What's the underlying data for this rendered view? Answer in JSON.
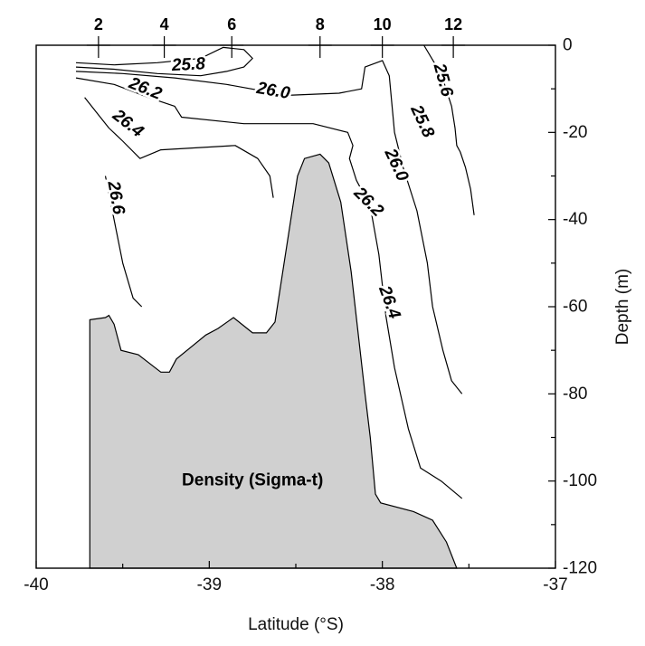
{
  "chart_data": {
    "type": "contour",
    "annotation": "Density (Sigma-t)",
    "xlabel": "Latitude (°S)",
    "ylabel": "Depth (m)",
    "xlim": [
      -40,
      -37
    ],
    "ylim": [
      0,
      120
    ],
    "x_ticks": [
      {
        "value": -40,
        "label": "-40"
      },
      {
        "value": -39,
        "label": "-39"
      },
      {
        "value": -38,
        "label": "-38"
      },
      {
        "value": -37,
        "label": "-37"
      }
    ],
    "y_ticks": [
      {
        "value": 0,
        "label": "0"
      },
      {
        "value": 20,
        "label": "-20"
      },
      {
        "value": 40,
        "label": "-40"
      },
      {
        "value": 60,
        "label": "-60"
      },
      {
        "value": 80,
        "label": "-80"
      },
      {
        "value": 100,
        "label": "-100"
      },
      {
        "value": 120,
        "label": "-120"
      }
    ],
    "stations": [
      {
        "label": "2",
        "x": -39.64
      },
      {
        "label": "4",
        "x": -39.26
      },
      {
        "label": "6",
        "x": -38.87
      },
      {
        "label": "8",
        "x": -38.36
      },
      {
        "label": "10",
        "x": -38.0
      },
      {
        "label": "12",
        "x": -37.59
      }
    ],
    "bathymetry": [
      [
        -39.69,
        120
      ],
      [
        -39.69,
        63
      ],
      [
        -39.6,
        62.5
      ],
      [
        -39.58,
        62
      ],
      [
        -39.55,
        64
      ],
      [
        -39.51,
        70
      ],
      [
        -39.41,
        71
      ],
      [
        -39.28,
        75
      ],
      [
        -39.23,
        75
      ],
      [
        -39.19,
        72
      ],
      [
        -39.02,
        66.5
      ],
      [
        -38.95,
        65
      ],
      [
        -38.86,
        62.5
      ],
      [
        -38.75,
        66
      ],
      [
        -38.67,
        66
      ],
      [
        -38.62,
        63.5
      ],
      [
        -38.49,
        30
      ],
      [
        -38.45,
        26
      ],
      [
        -38.36,
        25
      ],
      [
        -38.31,
        27
      ],
      [
        -38.24,
        36
      ],
      [
        -38.18,
        52
      ],
      [
        -38.1,
        80
      ],
      [
        -38.07,
        90
      ],
      [
        -38.04,
        103
      ],
      [
        -38.01,
        105
      ],
      [
        -37.82,
        107
      ],
      [
        -37.71,
        109
      ],
      [
        -37.63,
        114
      ],
      [
        -37.57,
        120
      ]
    ],
    "contours": [
      {
        "level": 25.8,
        "label": "25.8",
        "points": [
          [
            -39.77,
            4
          ],
          [
            -39.55,
            4.5
          ],
          [
            -39.3,
            4
          ],
          [
            -39.05,
            3
          ],
          [
            -38.92,
            0.5
          ],
          [
            -38.8,
            1
          ],
          [
            -38.75,
            3
          ],
          [
            -38.8,
            5
          ],
          [
            -38.9,
            6
          ],
          [
            -39.05,
            7
          ],
          [
            -39.3,
            6.5
          ],
          [
            -39.55,
            5.5
          ],
          [
            -39.77,
            5
          ]
        ]
      },
      {
        "level": 26.0,
        "label": "26.0",
        "points": [
          [
            -39.77,
            6
          ],
          [
            -39.5,
            6.5
          ],
          [
            -39.2,
            7.5
          ],
          [
            -38.9,
            9
          ],
          [
            -38.55,
            11.5
          ],
          [
            -38.25,
            11
          ],
          [
            -38.12,
            10
          ],
          [
            -38.1,
            5
          ],
          [
            -38.0,
            3.5
          ],
          [
            -37.96,
            7
          ],
          [
            -37.93,
            20
          ],
          [
            -37.88,
            28
          ],
          [
            -37.8,
            38
          ],
          [
            -37.74,
            50
          ],
          [
            -37.71,
            60
          ],
          [
            -37.65,
            70
          ],
          [
            -37.6,
            77
          ],
          [
            -37.54,
            80
          ]
        ]
      },
      {
        "level": 26.2,
        "label": "26.2",
        "points": [
          [
            -39.77,
            7.5
          ],
          [
            -39.55,
            9
          ],
          [
            -39.35,
            12
          ],
          [
            -39.2,
            14
          ],
          [
            -39.16,
            16.5
          ],
          [
            -38.8,
            18
          ],
          [
            -38.4,
            18
          ],
          [
            -38.2,
            20
          ],
          [
            -38.17,
            23
          ],
          [
            -38.19,
            26
          ],
          [
            -38.15,
            31
          ],
          [
            -38.07,
            37
          ],
          [
            -38.02,
            48
          ],
          [
            -37.98,
            62
          ],
          [
            -37.93,
            74
          ],
          [
            -37.85,
            88
          ],
          [
            -37.78,
            97
          ],
          [
            -37.66,
            100
          ],
          [
            -37.54,
            104
          ]
        ]
      },
      {
        "level": 26.4,
        "label": "26.4",
        "points": [
          [
            -39.72,
            12
          ],
          [
            -39.58,
            19
          ],
          [
            -39.5,
            22
          ],
          [
            -39.4,
            26
          ],
          [
            -39.28,
            24
          ],
          [
            -38.85,
            23
          ],
          [
            -38.72,
            26
          ],
          [
            -38.65,
            30
          ],
          [
            -38.63,
            35
          ]
        ]
      },
      {
        "level": 26.6,
        "label": "26.6",
        "points": [
          [
            -39.6,
            30
          ],
          [
            -39.55,
            40
          ],
          [
            -39.5,
            50
          ],
          [
            -39.44,
            58
          ],
          [
            -39.39,
            60
          ]
        ]
      },
      {
        "level": 25.6,
        "label": "25.6",
        "points": [
          [
            -37.76,
            0
          ],
          [
            -37.7,
            4
          ],
          [
            -37.64,
            9
          ],
          [
            -37.6,
            14
          ],
          [
            -37.58,
            19
          ],
          [
            -37.57,
            23
          ],
          [
            -37.55,
            24.5
          ],
          [
            -37.52,
            28
          ],
          [
            -37.49,
            33
          ],
          [
            -37.47,
            39
          ]
        ]
      }
    ],
    "label_positions": [
      {
        "label": "25.8",
        "x": -39.12,
        "y": 4.5,
        "angle": -3
      },
      {
        "label": "26.2",
        "x": -39.37,
        "y": 10,
        "angle": 22
      },
      {
        "label": "26.0",
        "x": -38.63,
        "y": 10.5,
        "angle": 10
      },
      {
        "label": "26.4",
        "x": -39.47,
        "y": 18,
        "angle": 38
      },
      {
        "label": "26.6",
        "x": -39.54,
        "y": 35,
        "angle": 80
      },
      {
        "label": "25.6",
        "x": -37.65,
        "y": 8,
        "angle": 75
      },
      {
        "label": "25.8",
        "x": -37.77,
        "y": 17.5,
        "angle": 65
      },
      {
        "label": "26.0",
        "x": -37.92,
        "y": 27.5,
        "angle": 65
      },
      {
        "label": "26.2",
        "x": -38.08,
        "y": 36,
        "angle": 45
      },
      {
        "label": "26.4",
        "x": -37.96,
        "y": 59,
        "angle": 70
      }
    ]
  }
}
